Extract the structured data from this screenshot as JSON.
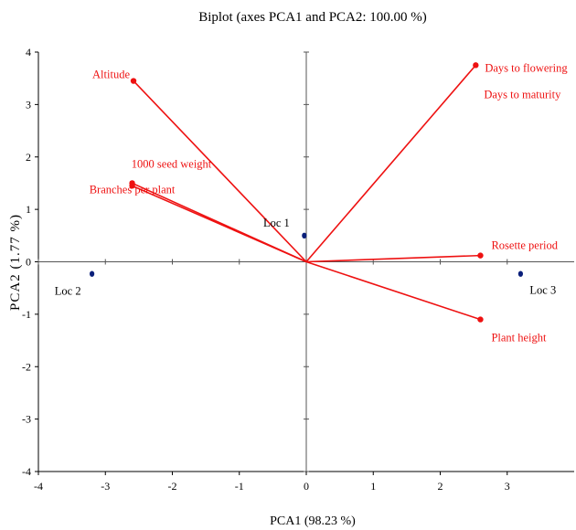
{
  "chart_data": {
    "type": "scatter",
    "title": "Biplot (axes PCA1 and PCA2: 100.00 %)",
    "xlabel": "PCA1 (98.23 %)",
    "ylabel": "PCA2 (1.77 %)",
    "xlim": [
      -4,
      4
    ],
    "ylim": [
      -4,
      4
    ],
    "xticks": [
      -4,
      -3,
      -2,
      -1,
      0,
      1,
      2,
      3
    ],
    "yticks": [
      -4,
      -3,
      -2,
      -1,
      0,
      1,
      2,
      3,
      4
    ],
    "grid": false,
    "vector_color": "#ee1111",
    "point_color": "#0a1f7a",
    "observations": [
      {
        "name": "Loc 1",
        "x": -0.03,
        "y": 0.5
      },
      {
        "name": "Loc 2",
        "x": -3.2,
        "y": -0.23
      },
      {
        "name": "Loc 3",
        "x": 3.2,
        "y": -0.23
      }
    ],
    "variables": [
      {
        "name": "Altitude",
        "x": -2.58,
        "y": 3.45
      },
      {
        "name": "Days to flowering",
        "x": 2.53,
        "y": 3.75
      },
      {
        "name": "Days to maturity",
        "x": 2.53,
        "y": 3.75
      },
      {
        "name": "1000 seed weight",
        "x": -2.6,
        "y": 1.5
      },
      {
        "name": "Branches per plant",
        "x": -2.6,
        "y": 1.45
      },
      {
        "name": "Rosette period",
        "x": 2.6,
        "y": 0.12
      },
      {
        "name": "Plant height",
        "x": 2.6,
        "y": -1.1
      }
    ]
  }
}
